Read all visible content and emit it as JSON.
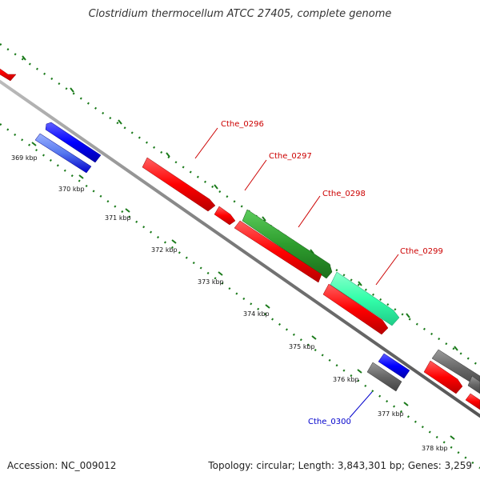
{
  "title": "Clostridium thermocellum ATCC 27405, complete genome",
  "footer": {
    "accession": "Accession: NC_009012",
    "summary": "Topology: circular; Length: 3,843,301 bp; Genes: 3,259"
  },
  "ticks": [
    "369 kbp",
    "370 kbp",
    "371 kbp",
    "372 kbp",
    "373 kbp",
    "374 kbp",
    "375 kbp",
    "376 kbp",
    "377 kbp",
    "378 kbp"
  ],
  "gene_labels": {
    "cthe_0296": "Cthe_0296",
    "cthe_0297": "Cthe_0297",
    "cthe_0298": "Cthe_0298",
    "cthe_0299": "Cthe_0299",
    "cthe_0300": "Cthe_0300"
  },
  "colors": {
    "forward_gene": "#ff0000",
    "reverse_gene": "#0000ff",
    "rrna_green": "#2e9e2e",
    "trna_teal": "#33ffaa",
    "gray_gene": "#666666",
    "backbone": "#777777",
    "tick": "#1a7a1a",
    "label_red": "#cc0000",
    "label_blue": "#0000cc"
  }
}
